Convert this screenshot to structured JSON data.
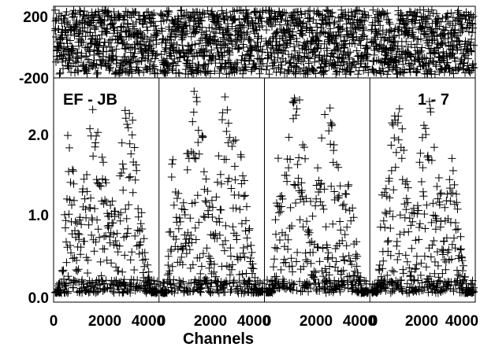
{
  "chart_data": {
    "type": "scatter",
    "baseline": "EF - JB",
    "if_range": "1 - 7",
    "xlabel": "Channels",
    "marker": "plus",
    "color": "#000000",
    "panels": {
      "phase": {
        "ylim": [
          -200,
          200
        ],
        "yticks": [
          "200",
          "-200"
        ],
        "values_deg": "noise spanning -180 to 180 in every channel"
      },
      "amplitude": {
        "ylim": [
          0.0,
          2.5
        ],
        "yticks": [
          "0.0",
          "1.0",
          "2.0"
        ],
        "band_edge_level": 0.1,
        "passband_peaks": [
          2.3,
          2.4,
          2.4,
          2.3
        ]
      }
    },
    "subbands": [
      {
        "x_ticks": [
          "0",
          "2000",
          "4000"
        ],
        "xlim": [
          0,
          4096
        ]
      },
      {
        "x_ticks": [
          "0",
          "2000",
          "4000"
        ],
        "xlim": [
          0,
          4096
        ]
      },
      {
        "x_ticks": [
          "0",
          "2000",
          "4000"
        ],
        "xlim": [
          0,
          4096
        ]
      },
      {
        "x_ticks": [
          "0",
          "2000",
          "4000"
        ],
        "xlim": [
          0,
          4096
        ]
      }
    ]
  }
}
